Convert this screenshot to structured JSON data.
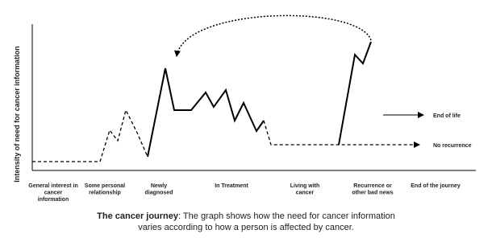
{
  "y_axis_label": "Intensity of need for cancer information",
  "stages": [
    [
      "General interest in",
      "cancer",
      "information"
    ],
    [
      "Some personal",
      "relationship"
    ],
    [
      "Newly",
      "diagnosed"
    ],
    [
      "In Treatment"
    ],
    [
      "Living with",
      "cancer"
    ],
    [
      "Recurrence or",
      "other bad news"
    ],
    [
      "End of the journey"
    ]
  ],
  "outcomes": [
    "End of life",
    "No recurrence"
  ],
  "caption": {
    "title": "The cancer journey",
    "line1": ": The graph shows how the need for cancer information",
    "line2": "varies according to how a person is affected by cancer."
  }
}
